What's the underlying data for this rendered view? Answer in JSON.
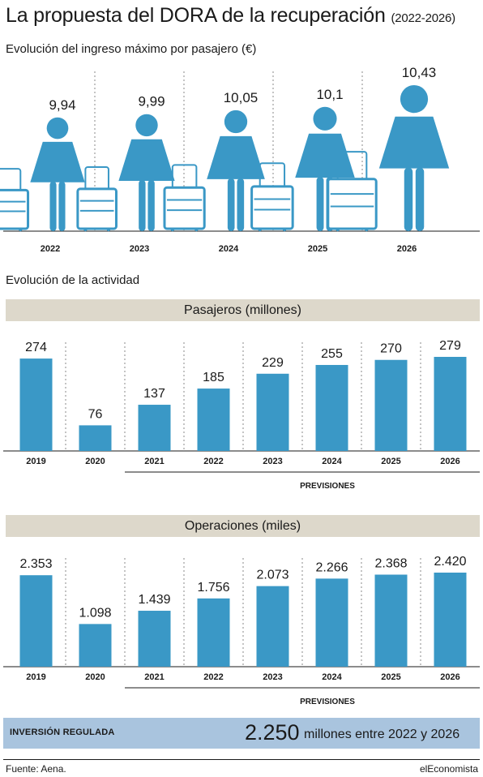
{
  "header": {
    "title": "La propuesta del DORA de la recuperación",
    "title_years": "(2022-2026)",
    "subtitle": "Evolución del ingreso máximo por pasajero (€)",
    "activity_title": "Evolución de la actividad"
  },
  "colors": {
    "bar": "#3a98c6",
    "band": "#ddd8cb",
    "investment_band": "#a9c4de",
    "text": "#1a1a1a"
  },
  "chart_data": [
    {
      "type": "pictogram",
      "icon": "traveler-with-suitcase",
      "title": "Evolución del ingreso máximo por pasajero (€)",
      "categories": [
        "2022",
        "2023",
        "2024",
        "2025",
        "2026"
      ],
      "values": [
        9.94,
        9.99,
        10.05,
        10.1,
        10.43
      ],
      "labels": [
        "9,94",
        "9,99",
        "10,05",
        "10,1",
        "10,43"
      ]
    },
    {
      "type": "bar",
      "title": "Pasajeros (millones)",
      "categories": [
        "2019",
        "2020",
        "2021",
        "2022",
        "2023",
        "2024",
        "2025",
        "2026"
      ],
      "values": [
        274,
        76,
        137,
        185,
        229,
        255,
        270,
        279
      ],
      "labels": [
        "274",
        "76",
        "137",
        "185",
        "229",
        "255",
        "270",
        "279"
      ],
      "ylim": [
        0,
        300
      ],
      "bracket_label": "PREVISIONES"
    },
    {
      "type": "bar",
      "title": "Operaciones (miles)",
      "categories": [
        "2019",
        "2020",
        "2021",
        "2022",
        "2023",
        "2024",
        "2025",
        "2026"
      ],
      "values": [
        2353,
        1098,
        1439,
        1756,
        2073,
        2266,
        2368,
        2420
      ],
      "labels": [
        "2.353",
        "1.098",
        "1.439",
        "1.756",
        "2.073",
        "2.266",
        "2.368",
        "2.420"
      ],
      "ylim": [
        0,
        2600
      ],
      "bracket_label": "PREVISIONES"
    }
  ],
  "investment": {
    "label": "INVERSIÓN REGULADA",
    "value": "2.250",
    "rest": "millones entre 2022 y 2026"
  },
  "footer": {
    "source": "Fuente: Aena.",
    "brand": "elEconomista"
  }
}
